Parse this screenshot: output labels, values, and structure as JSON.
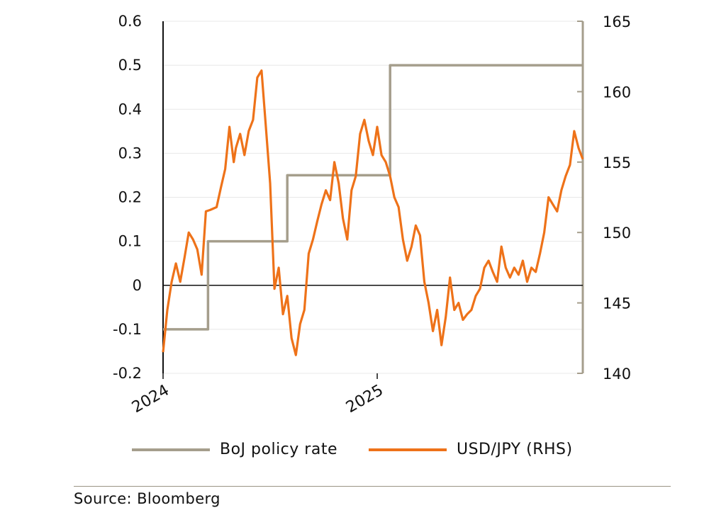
{
  "chart_data": {
    "type": "line",
    "title": "",
    "x_ticks": [
      "2024",
      "2025"
    ],
    "left_axis": {
      "ylim": [
        -0.2,
        0.6
      ],
      "ticks": [
        "0.6",
        "0.5",
        "0.4",
        "0.3",
        "0.2",
        "0.1",
        "0",
        "-0.1",
        "-0.2"
      ]
    },
    "right_axis": {
      "ylim": [
        140,
        165
      ],
      "ticks": [
        "165",
        "160",
        "155",
        "150",
        "145",
        "140"
      ]
    },
    "series": [
      {
        "name": "BoJ policy rate",
        "axis": "left",
        "color": "#a59e8c",
        "x": [
          2024.0,
          2024.21,
          2024.21,
          2024.58,
          2024.58,
          2025.06,
          2025.06,
          2025.96
        ],
        "values": [
          -0.1,
          -0.1,
          0.1,
          0.1,
          0.25,
          0.25,
          0.5,
          0.5
        ]
      },
      {
        "name": "USD/JPY (RHS)",
        "axis": "right",
        "color": "#ee7219",
        "x": [
          2024.0,
          2024.02,
          2024.04,
          2024.06,
          2024.08,
          2024.1,
          2024.12,
          2024.14,
          2024.16,
          2024.18,
          2024.2,
          2024.22,
          2024.25,
          2024.27,
          2024.29,
          2024.31,
          2024.33,
          2024.34,
          2024.36,
          2024.38,
          2024.4,
          2024.42,
          2024.44,
          2024.46,
          2024.48,
          2024.5,
          2024.52,
          2024.54,
          2024.56,
          2024.58,
          2024.6,
          2024.62,
          2024.64,
          2024.66,
          2024.68,
          2024.7,
          2024.72,
          2024.74,
          2024.76,
          2024.78,
          2024.8,
          2024.82,
          2024.84,
          2024.86,
          2024.88,
          2024.9,
          2024.92,
          2024.94,
          2024.96,
          2024.98,
          2025.0,
          2025.02,
          2025.04,
          2025.06,
          2025.08,
          2025.1,
          2025.12,
          2025.14,
          2025.16,
          2025.18,
          2025.2,
          2025.22,
          2025.24,
          2025.26,
          2025.28,
          2025.3,
          2025.32,
          2025.34,
          2025.36,
          2025.38,
          2025.4,
          2025.42,
          2025.44,
          2025.46,
          2025.48,
          2025.5,
          2025.52,
          2025.54,
          2025.56,
          2025.58,
          2025.6,
          2025.62,
          2025.64,
          2025.66,
          2025.68,
          2025.7,
          2025.72,
          2025.74,
          2025.76,
          2025.78,
          2025.8,
          2025.82,
          2025.84,
          2025.86,
          2025.88,
          2025.9,
          2025.92,
          2025.94,
          2025.96
        ],
        "values": [
          141.5,
          144.5,
          146.5,
          147.8,
          146.5,
          148.2,
          150.0,
          149.5,
          148.8,
          147.0,
          151.5,
          151.6,
          151.8,
          153.2,
          154.5,
          157.5,
          155.0,
          156.0,
          157.0,
          155.5,
          157.2,
          158.0,
          161.0,
          161.5,
          157.5,
          153.5,
          146.0,
          147.5,
          144.2,
          145.5,
          142.5,
          141.3,
          143.5,
          144.5,
          148.5,
          149.5,
          150.8,
          152.0,
          153.0,
          152.3,
          155.0,
          153.5,
          151.0,
          149.5,
          153.0,
          154.0,
          157.0,
          158.0,
          156.5,
          155.5,
          157.5,
          155.5,
          155.0,
          154.0,
          152.5,
          151.8,
          149.5,
          148.0,
          149.0,
          150.5,
          149.8,
          146.5,
          145.0,
          143.0,
          144.5,
          142.0,
          144.0,
          146.8,
          144.5,
          145.0,
          143.8,
          144.2,
          144.5,
          145.5,
          146.0,
          147.5,
          148.0,
          147.2,
          146.5,
          149.0,
          147.5,
          146.8,
          147.5,
          147.0,
          148.0,
          146.5,
          147.5,
          147.2,
          148.5,
          150.0,
          152.5,
          152.0,
          151.5,
          153.0,
          154.0,
          154.8,
          157.2,
          156.0,
          155.2
        ]
      }
    ]
  },
  "legend": {
    "items": [
      "BoJ policy rate",
      "USD/JPY (RHS)"
    ]
  },
  "source": "Source: Bloomberg",
  "colors": {
    "rate": "#a59e8c",
    "fx": "#ee7219",
    "axis": "#a59e8c",
    "zero": "#111111",
    "grid": "#e8e8e8"
  }
}
